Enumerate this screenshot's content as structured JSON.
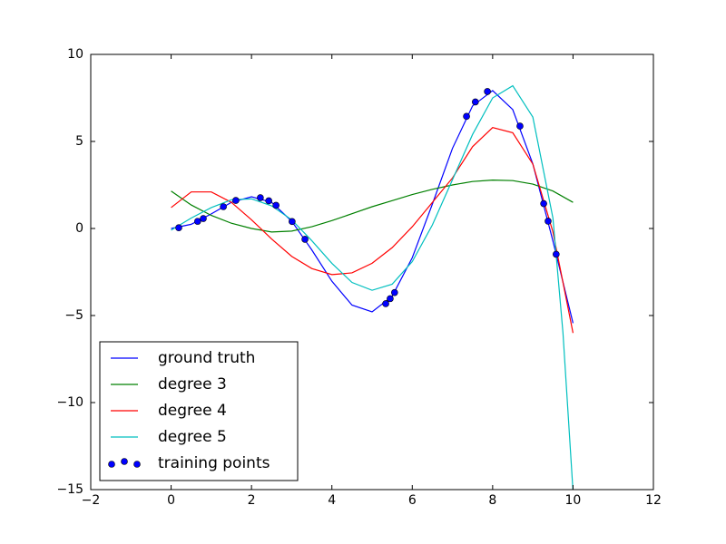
{
  "chart_data": {
    "type": "line",
    "xlim": [
      -2,
      12
    ],
    "xticks": [
      {
        "value": -2,
        "label": "−2"
      },
      0,
      2,
      4,
      6,
      8,
      10,
      12
    ],
    "ylim": [
      -15,
      10
    ],
    "yticks": [
      {
        "value": -15,
        "label": "−15"
      },
      {
        "value": -10,
        "label": "−10"
      },
      {
        "value": -5,
        "label": "−5"
      },
      0,
      5,
      10
    ],
    "legend": "lower left",
    "series": [
      {
        "name": "ground truth",
        "color": "#0000ff",
        "kind": "line",
        "x": [
          0,
          0.5,
          1,
          1.5,
          2,
          2.5,
          3,
          3.5,
          4,
          4.5,
          5,
          5.5,
          6,
          6.5,
          7,
          7.5,
          8,
          8.5,
          9,
          9.5,
          10
        ],
        "values": [
          0,
          0.24,
          0.84,
          1.5,
          1.82,
          1.5,
          0.42,
          -1.23,
          -3.03,
          -4.4,
          -4.79,
          -3.89,
          -1.68,
          1.4,
          4.6,
          7.04,
          7.92,
          6.83,
          3.71,
          -0.72,
          -5.44
        ]
      },
      {
        "name": "degree 3",
        "color": "#008000",
        "kind": "line",
        "x": [
          0,
          0.5,
          1,
          1.5,
          2,
          2.5,
          3,
          3.5,
          4,
          4.5,
          5,
          5.5,
          6,
          6.5,
          7,
          7.5,
          8,
          8.5,
          9,
          9.5,
          10
        ],
        "values": [
          2.15,
          1.35,
          0.75,
          0.3,
          0,
          -0.2,
          -0.15,
          0.1,
          0.45,
          0.85,
          1.25,
          1.6,
          1.95,
          2.25,
          2.5,
          2.7,
          2.78,
          2.75,
          2.55,
          2.15,
          1.5
        ]
      },
      {
        "name": "degree 4",
        "color": "#ff0000",
        "kind": "line",
        "x": [
          0,
          0.5,
          1,
          1.5,
          2,
          2.5,
          3,
          3.5,
          4,
          4.5,
          5,
          5.5,
          6,
          6.5,
          7,
          7.5,
          8,
          8.5,
          9,
          9.5,
          10
        ],
        "values": [
          1.2,
          2.1,
          2.1,
          1.5,
          0.5,
          -0.6,
          -1.6,
          -2.3,
          -2.65,
          -2.55,
          -2,
          -1.1,
          0.1,
          1.5,
          2.9,
          4.7,
          5.8,
          5.5,
          3.7,
          -0.2,
          -6
        ]
      },
      {
        "name": "degree 5",
        "color": "#00bfbf",
        "kind": "line",
        "x": [
          0,
          0.5,
          1,
          1.5,
          2,
          2.5,
          3,
          3.5,
          4,
          4.5,
          5,
          5.5,
          6,
          6.5,
          7,
          7.5,
          8,
          8.5,
          9,
          9.5,
          9.75,
          10
        ],
        "values": [
          -0.1,
          0.6,
          1.2,
          1.65,
          1.7,
          1.3,
          0.5,
          -0.7,
          -2,
          -3.1,
          -3.55,
          -3.2,
          -1.9,
          0.2,
          2.8,
          5.4,
          7.5,
          8.2,
          6.4,
          0.6,
          -6,
          -15.1
        ]
      },
      {
        "name": "training points",
        "color": "#0000ff",
        "kind": "scatter",
        "x": [
          0.19,
          0.66,
          0.8,
          1.3,
          1.61,
          2.22,
          2.43,
          2.61,
          3.01,
          3.33,
          5.34,
          5.45,
          5.56,
          7.35,
          7.57,
          7.87,
          8.68,
          9.27,
          9.38,
          9.58
        ],
        "values": [
          0.04,
          0.41,
          0.57,
          1.25,
          1.61,
          1.77,
          1.59,
          1.33,
          0.4,
          -0.62,
          -4.32,
          -4.03,
          -3.68,
          6.44,
          7.27,
          7.87,
          5.88,
          1.43,
          0.42,
          -1.48
        ]
      }
    ]
  }
}
